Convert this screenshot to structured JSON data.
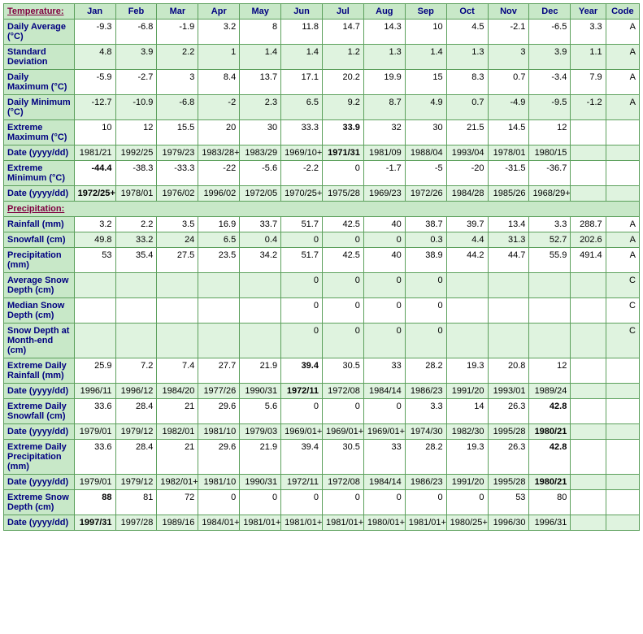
{
  "headers": [
    "Temperature:",
    "Jan",
    "Feb",
    "Mar",
    "Apr",
    "May",
    "Jun",
    "Jul",
    "Aug",
    "Sep",
    "Oct",
    "Nov",
    "Dec",
    "Year",
    "Code"
  ],
  "precipHeader": "Precipitation:",
  "rows": [
    {
      "label": "Daily Average (°C)",
      "alt": false,
      "cells": [
        "-9.3",
        "-6.8",
        "-1.9",
        "3.2",
        "8",
        "11.8",
        "14.7",
        "14.3",
        "10",
        "4.5",
        "-2.1",
        "-6.5",
        "3.3",
        "A"
      ],
      "bold": []
    },
    {
      "label": "Standard Deviation",
      "alt": true,
      "cells": [
        "4.8",
        "3.9",
        "2.2",
        "1",
        "1.4",
        "1.4",
        "1.2",
        "1.3",
        "1.4",
        "1.3",
        "3",
        "3.9",
        "1.1",
        "A"
      ],
      "bold": []
    },
    {
      "label": "Daily Maximum (°C)",
      "alt": false,
      "cells": [
        "-5.9",
        "-2.7",
        "3",
        "8.4",
        "13.7",
        "17.1",
        "20.2",
        "19.9",
        "15",
        "8.3",
        "0.7",
        "-3.4",
        "7.9",
        "A"
      ],
      "bold": []
    },
    {
      "label": "Daily Minimum (°C)",
      "alt": true,
      "cells": [
        "-12.7",
        "-10.9",
        "-6.8",
        "-2",
        "2.3",
        "6.5",
        "9.2",
        "8.7",
        "4.9",
        "0.7",
        "-4.9",
        "-9.5",
        "-1.2",
        "A"
      ],
      "bold": []
    },
    {
      "label": "Extreme Maximum (°C)",
      "alt": false,
      "cells": [
        "10",
        "12",
        "15.5",
        "20",
        "30",
        "33.3",
        "33.9",
        "32",
        "30",
        "21.5",
        "14.5",
        "12",
        "",
        ""
      ],
      "bold": [
        6
      ]
    },
    {
      "label": "Date (yyyy/dd)",
      "alt": true,
      "cells": [
        "1981/21",
        "1992/25",
        "1979/23",
        "1983/28+",
        "1983/29",
        "1969/10+",
        "1971/31",
        "1981/09",
        "1988/04",
        "1993/04",
        "1978/01",
        "1980/15",
        "",
        ""
      ],
      "bold": [
        6
      ]
    },
    {
      "label": "Extreme Minimum (°C)",
      "alt": false,
      "cells": [
        "-44.4",
        "-38.3",
        "-33.3",
        "-22",
        "-5.6",
        "-2.2",
        "0",
        "-1.7",
        "-5",
        "-20",
        "-31.5",
        "-36.7",
        "",
        ""
      ],
      "bold": [
        0
      ]
    },
    {
      "label": "Date (yyyy/dd)",
      "alt": true,
      "cells": [
        "1972/25+",
        "1978/01",
        "1976/02",
        "1996/02",
        "1972/05",
        "1970/25+",
        "1975/28",
        "1969/23",
        "1972/26",
        "1984/28",
        "1985/26",
        "1968/29+",
        "",
        ""
      ],
      "bold": [
        0
      ]
    }
  ],
  "precipRows": [
    {
      "label": "Rainfall (mm)",
      "alt": false,
      "cells": [
        "3.2",
        "2.2",
        "3.5",
        "16.9",
        "33.7",
        "51.7",
        "42.5",
        "40",
        "38.7",
        "39.7",
        "13.4",
        "3.3",
        "288.7",
        "A"
      ],
      "bold": []
    },
    {
      "label": "Snowfall (cm)",
      "alt": true,
      "cells": [
        "49.8",
        "33.2",
        "24",
        "6.5",
        "0.4",
        "0",
        "0",
        "0",
        "0.3",
        "4.4",
        "31.3",
        "52.7",
        "202.6",
        "A"
      ],
      "bold": []
    },
    {
      "label": "Precipitation (mm)",
      "alt": false,
      "cells": [
        "53",
        "35.4",
        "27.5",
        "23.5",
        "34.2",
        "51.7",
        "42.5",
        "40",
        "38.9",
        "44.2",
        "44.7",
        "55.9",
        "491.4",
        "A"
      ],
      "bold": []
    },
    {
      "label": "Average Snow Depth (cm)",
      "alt": true,
      "cells": [
        "",
        "",
        "",
        "",
        "",
        "0",
        "0",
        "0",
        "0",
        "",
        "",
        "",
        "",
        "C"
      ],
      "bold": []
    },
    {
      "label": "Median Snow Depth (cm)",
      "alt": false,
      "cells": [
        "",
        "",
        "",
        "",
        "",
        "0",
        "0",
        "0",
        "0",
        "",
        "",
        "",
        "",
        "C"
      ],
      "bold": []
    },
    {
      "label": "Snow Depth at Month-end (cm)",
      "alt": true,
      "cells": [
        "",
        "",
        "",
        "",
        "",
        "0",
        "0",
        "0",
        "0",
        "",
        "",
        "",
        "",
        "C"
      ],
      "bold": []
    },
    {
      "label": "Extreme Daily Rainfall (mm)",
      "alt": false,
      "cells": [
        "25.9",
        "7.2",
        "7.4",
        "27.7",
        "21.9",
        "39.4",
        "30.5",
        "33",
        "28.2",
        "19.3",
        "20.8",
        "12",
        "",
        ""
      ],
      "bold": [
        5
      ]
    },
    {
      "label": "Date (yyyy/dd)",
      "alt": true,
      "cells": [
        "1996/11",
        "1996/12",
        "1984/20",
        "1977/26",
        "1990/31",
        "1972/11",
        "1972/08",
        "1984/14",
        "1986/23",
        "1991/20",
        "1993/01",
        "1989/24",
        "",
        ""
      ],
      "bold": [
        5
      ]
    },
    {
      "label": "Extreme Daily Snowfall (cm)",
      "alt": false,
      "cells": [
        "33.6",
        "28.4",
        "21",
        "29.6",
        "5.6",
        "0",
        "0",
        "0",
        "3.3",
        "14",
        "26.3",
        "42.8",
        "",
        ""
      ],
      "bold": [
        11
      ]
    },
    {
      "label": "Date (yyyy/dd)",
      "alt": true,
      "cells": [
        "1979/01",
        "1979/12",
        "1982/01",
        "1981/10",
        "1979/03",
        "1969/01+",
        "1969/01+",
        "1969/01+",
        "1974/30",
        "1982/30",
        "1995/28",
        "1980/21",
        "",
        ""
      ],
      "bold": [
        11
      ]
    },
    {
      "label": "Extreme Daily Precipitation (mm)",
      "alt": false,
      "cells": [
        "33.6",
        "28.4",
        "21",
        "29.6",
        "21.9",
        "39.4",
        "30.5",
        "33",
        "28.2",
        "19.3",
        "26.3",
        "42.8",
        "",
        ""
      ],
      "bold": [
        11
      ]
    },
    {
      "label": "Date (yyyy/dd)",
      "alt": true,
      "cells": [
        "1979/01",
        "1979/12",
        "1982/01+",
        "1981/10",
        "1990/31",
        "1972/11",
        "1972/08",
        "1984/14",
        "1986/23",
        "1991/20",
        "1995/28",
        "1980/21",
        "",
        ""
      ],
      "bold": [
        11
      ]
    },
    {
      "label": "Extreme Snow Depth (cm)",
      "alt": false,
      "cells": [
        "88",
        "81",
        "72",
        "0",
        "0",
        "0",
        "0",
        "0",
        "0",
        "0",
        "53",
        "80",
        "",
        ""
      ],
      "bold": [
        0
      ]
    },
    {
      "label": "Date (yyyy/dd)",
      "alt": true,
      "cells": [
        "1997/31",
        "1997/28",
        "1989/16",
        "1984/01+",
        "1981/01+",
        "1981/01+",
        "1981/01+",
        "1980/01+",
        "1981/01+",
        "1980/25+",
        "1996/30",
        "1996/31",
        "",
        ""
      ],
      "bold": [
        0
      ]
    }
  ]
}
